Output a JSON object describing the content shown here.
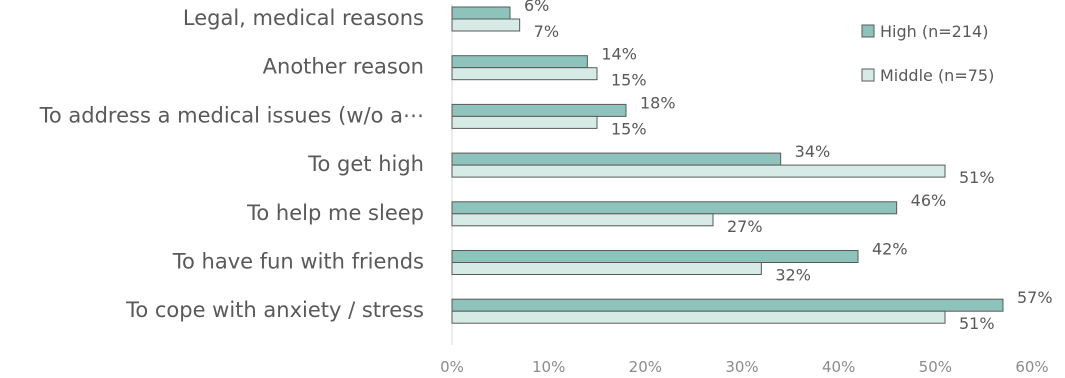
{
  "chart_data": {
    "type": "bar",
    "orientation": "horizontal",
    "categories": [
      "Legal, medical reasons",
      "Another reason",
      "To address a medical issues (w/o a⋯",
      "To get high",
      "To help me sleep",
      "To have fun with friends",
      "To cope with anxiety / stress"
    ],
    "series": [
      {
        "name": "High (n=214)",
        "values": [
          6,
          14,
          18,
          34,
          46,
          42,
          57
        ],
        "labels": [
          "6%",
          "14%",
          "18%",
          "34%",
          "46%",
          "42%",
          "57%"
        ],
        "color": "#8dc3bb"
      },
      {
        "name": "Middle (n=75)",
        "values": [
          7,
          15,
          15,
          51,
          27,
          32,
          51
        ],
        "labels": [
          "7%",
          "15%",
          "15%",
          "51%",
          "27%",
          "32%",
          "51%"
        ],
        "color": "#d6ebe6"
      }
    ],
    "xlim": [
      0,
      60
    ],
    "xticks": [
      "0%",
      "10%",
      "20%",
      "30%",
      "40%",
      "50%",
      "60%"
    ],
    "legend_position": "top-right",
    "grid": false,
    "bar_border_color": "#595959"
  }
}
